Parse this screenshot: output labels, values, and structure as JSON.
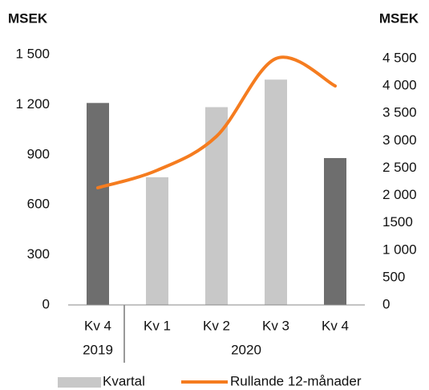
{
  "chart_data": {
    "type": "bar_line",
    "y_label": "MSEK",
    "y2_label": "MSEK",
    "categories": [
      "Kv 4",
      "Kv 1",
      "Kv 2",
      "Kv 3",
      "Kv 4"
    ],
    "groups": [
      {
        "label": "2019",
        "span": [
          0,
          0
        ]
      },
      {
        "label": "2020",
        "span": [
          1,
          4
        ]
      }
    ],
    "series": [
      {
        "name": "Kvartal",
        "type": "bar",
        "color": "#c8c8c8",
        "colors": [
          "#6e6e6e",
          "#c8c8c8",
          "#c8c8c8",
          "#c8c8c8",
          "#6e6e6e"
        ],
        "values": [
          1210,
          765,
          1185,
          1350,
          880
        ]
      },
      {
        "name": "Rullande 12-månader",
        "type": "line",
        "color": "#f57c1f",
        "axis": "y2",
        "values": [
          2140,
          2460,
          3080,
          4500,
          4000
        ]
      }
    ],
    "ylim": [
      0,
      1500
    ],
    "yticks": [
      0,
      300,
      600,
      900,
      {
        "value": 1200,
        "label": "1 200"
      },
      {
        "value": 1500,
        "label": "1 500"
      }
    ],
    "y2lim": [
      0,
      4500
    ],
    "y2ticks": [
      0,
      500,
      {
        "value": 1000,
        "label": "1 000"
      },
      {
        "value": 1500,
        "label": "1500"
      },
      {
        "value": 2000,
        "label": "2 000"
      },
      {
        "value": 2500,
        "label": "2 500"
      },
      {
        "value": 3000,
        "label": "3 000"
      },
      {
        "value": 3500,
        "label": "3 500"
      },
      {
        "value": 4000,
        "label": "4 000"
      },
      {
        "value": 4500,
        "label": "4 500"
      }
    ],
    "grid": false
  }
}
